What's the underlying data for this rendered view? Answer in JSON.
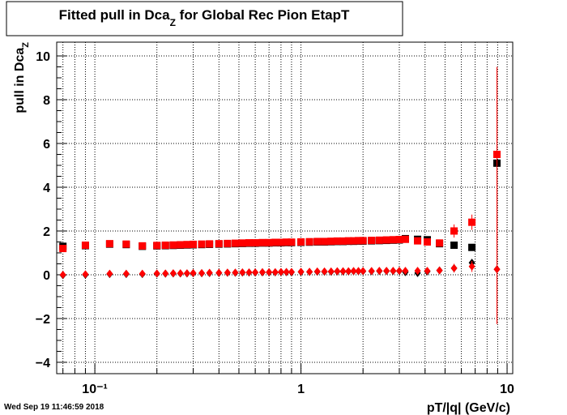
{
  "chart_data": {
    "type": "scatter",
    "title": {
      "text": "Fitted pull in Dca",
      "subscript": "Z",
      "tail": " for Global Rec Pion EtapT"
    },
    "x_label": "pT/|q| (GeV/c)",
    "y_label": {
      "text": "pull in Dca",
      "subscript": "Z"
    },
    "timestamp": "Wed Sep 19 11:46:59 2018",
    "log_x": true,
    "grid": true,
    "xlim": [
      0.0653,
      10.65
    ],
    "ylim": [
      -4.52,
      10.63
    ],
    "xticks": [
      {
        "value": 0.1,
        "label": "10⁻¹"
      },
      1,
      10
    ],
    "xminor": [
      0.07,
      0.08,
      0.09,
      0.2,
      0.3,
      0.4,
      0.5,
      0.6,
      0.7,
      0.8,
      0.9,
      2,
      3,
      4,
      5,
      6,
      7,
      8,
      9
    ],
    "yticks": [
      {
        "value": -4,
        "label": "−4"
      },
      {
        "value": -2,
        "label": "−2"
      },
      0,
      2,
      4,
      6,
      8,
      10
    ],
    "x": [
      0.07,
      0.09,
      0.118,
      0.142,
      0.17,
      0.2,
      0.22,
      0.24,
      0.26,
      0.28,
      0.3,
      0.33,
      0.36,
      0.4,
      0.44,
      0.48,
      0.52,
      0.56,
      0.6,
      0.65,
      0.7,
      0.75,
      0.8,
      0.85,
      0.9,
      1.0,
      1.1,
      1.2,
      1.3,
      1.4,
      1.5,
      1.6,
      1.7,
      1.8,
      1.9,
      2.0,
      2.2,
      2.4,
      2.6,
      2.8,
      3.0,
      3.21,
      3.68,
      4.1,
      4.7,
      5.53,
      6.75,
      8.93
    ],
    "series": [
      {
        "color": "#000000",
        "marker": "square",
        "values": [
          1.3,
          1.33,
          1.4,
          1.38,
          1.3,
          1.32,
          1.33,
          1.34,
          1.35,
          1.36,
          1.37,
          1.38,
          1.39,
          1.4,
          1.41,
          1.42,
          1.43,
          1.44,
          1.44,
          1.45,
          1.45,
          1.46,
          1.46,
          1.47,
          1.47,
          1.48,
          1.49,
          1.5,
          1.5,
          1.51,
          1.52,
          1.52,
          1.53,
          1.53,
          1.54,
          1.54,
          1.55,
          1.56,
          1.57,
          1.58,
          1.59,
          1.65,
          1.62,
          1.6,
          1.42,
          1.35,
          1.25,
          5.1
        ]
      },
      {
        "color": "#ff0000",
        "marker": "square",
        "values": [
          1.2,
          1.35,
          1.42,
          1.4,
          1.32,
          1.34,
          1.35,
          1.36,
          1.37,
          1.38,
          1.39,
          1.4,
          1.41,
          1.42,
          1.43,
          1.44,
          1.45,
          1.46,
          1.46,
          1.47,
          1.47,
          1.48,
          1.48,
          1.49,
          1.49,
          1.5,
          1.51,
          1.52,
          1.52,
          1.53,
          1.54,
          1.54,
          1.55,
          1.55,
          1.56,
          1.56,
          1.57,
          1.58,
          1.59,
          1.6,
          1.61,
          1.62,
          1.55,
          1.5,
          1.45,
          2.0,
          2.4,
          5.5
        ],
        "yerr": [
          0.08,
          0.05,
          0.04,
          0.04,
          0.04,
          0.03,
          0.03,
          0.03,
          0.03,
          0.03,
          0.03,
          0.03,
          0.03,
          0.03,
          0.03,
          0.03,
          0.03,
          0.03,
          0.03,
          0.03,
          0.03,
          0.03,
          0.03,
          0.03,
          0.03,
          0.03,
          0.03,
          0.03,
          0.03,
          0.03,
          0.03,
          0.03,
          0.03,
          0.03,
          0.03,
          0.03,
          0.03,
          0.03,
          0.04,
          0.04,
          0.05,
          0.05,
          0.06,
          0.08,
          0.1,
          0.3,
          0.35,
          4.0
        ]
      },
      {
        "color": "#000000",
        "marker": "diamond",
        "values": [
          -0.02,
          0.0,
          0.03,
          0.03,
          0.03,
          0.05,
          0.05,
          0.06,
          0.06,
          0.06,
          0.07,
          0.07,
          0.08,
          0.08,
          0.09,
          0.09,
          0.1,
          0.1,
          0.1,
          0.11,
          0.11,
          0.11,
          0.12,
          0.12,
          0.12,
          0.13,
          0.13,
          0.14,
          0.14,
          0.14,
          0.15,
          0.15,
          0.15,
          0.16,
          0.16,
          0.16,
          0.16,
          0.17,
          0.17,
          0.17,
          0.17,
          0.12,
          0.08,
          0.15,
          0.2,
          0.3,
          0.55,
          0.25
        ]
      },
      {
        "color": "#ff0000",
        "marker": "diamond",
        "values": [
          0.0,
          0.02,
          0.05,
          0.05,
          0.05,
          0.06,
          0.06,
          0.07,
          0.07,
          0.07,
          0.08,
          0.08,
          0.09,
          0.09,
          0.1,
          0.1,
          0.11,
          0.11,
          0.11,
          0.12,
          0.12,
          0.12,
          0.13,
          0.13,
          0.13,
          0.14,
          0.14,
          0.15,
          0.15,
          0.15,
          0.16,
          0.16,
          0.16,
          0.17,
          0.17,
          0.17,
          0.17,
          0.18,
          0.18,
          0.18,
          0.18,
          0.18,
          0.18,
          0.18,
          0.2,
          0.3,
          0.38,
          0.25
        ],
        "yerr": [
          0.05,
          0.03,
          0.03,
          0.03,
          0.03,
          0.02,
          0.02,
          0.02,
          0.02,
          0.02,
          0.02,
          0.02,
          0.02,
          0.02,
          0.02,
          0.02,
          0.02,
          0.02,
          0.02,
          0.02,
          0.02,
          0.02,
          0.02,
          0.02,
          0.02,
          0.02,
          0.02,
          0.02,
          0.02,
          0.02,
          0.02,
          0.02,
          0.02,
          0.02,
          0.02,
          0.02,
          0.02,
          0.02,
          0.03,
          0.03,
          0.03,
          0.04,
          0.05,
          0.06,
          0.08,
          0.2,
          0.25,
          2.5
        ]
      }
    ]
  }
}
